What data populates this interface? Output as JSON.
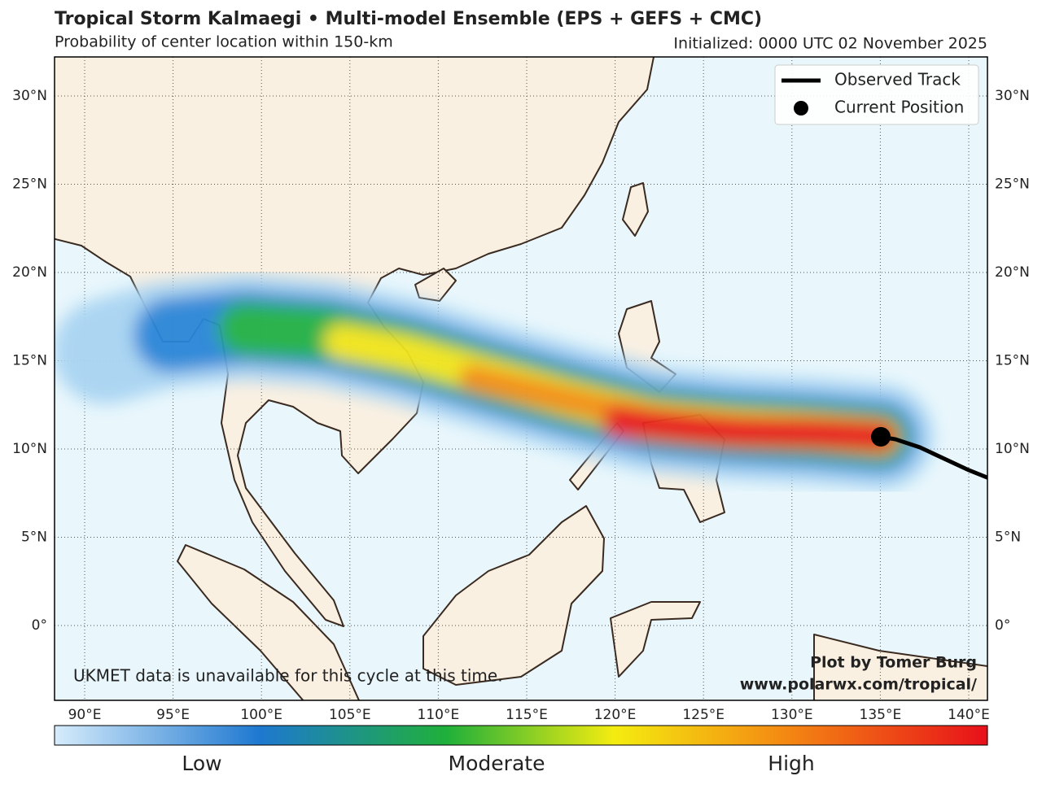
{
  "header": {
    "title": "Tropical Storm Kalmaegi • Multi-model Ensemble (EPS + GEFS + CMC)",
    "subtitle": "Probability of center location within 150-km",
    "initialized": "Initialized: 0000 UTC 02 November 2025"
  },
  "map": {
    "lat_labels": [
      "30°N",
      "25°N",
      "20°N",
      "15°N",
      "10°N",
      "5°N",
      "0°"
    ],
    "lon_labels": [
      "90°E",
      "95°E",
      "100°E",
      "105°E",
      "110°E",
      "115°E",
      "120°E",
      "125°E",
      "130°E",
      "135°E",
      "140°E"
    ]
  },
  "legend": {
    "items": [
      {
        "label": "Observed Track"
      },
      {
        "label": "Current Position"
      }
    ]
  },
  "colorbar": {
    "labels": [
      "Low",
      "Moderate",
      "High"
    ]
  },
  "notes": {
    "ukmet": "UKMET data is unavailable for this cycle at this time.",
    "credit": "Plot by Tomer Burg",
    "url": "www.polarwx.com/tropical/"
  }
}
